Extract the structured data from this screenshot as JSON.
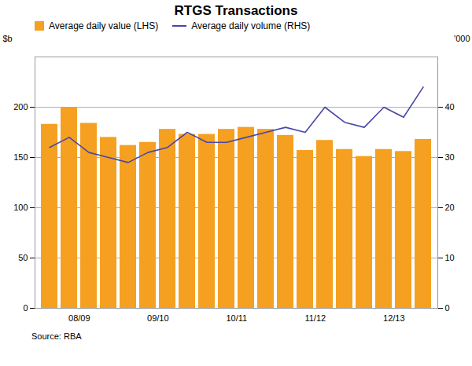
{
  "chart_data": {
    "type": "bar",
    "title": "RTGS Transactions",
    "ylabel": "$b",
    "y2label": "'000",
    "source": "Source: RBA",
    "categories": [
      null,
      "08/09",
      null,
      null,
      null,
      "09/10",
      null,
      null,
      null,
      "10/11",
      null,
      null,
      null,
      "11/12",
      null,
      null,
      null,
      "12/13",
      null,
      null
    ],
    "series": [
      {
        "name": "Average daily value (LHS)",
        "type": "bar",
        "color": "#F5A020",
        "values": [
          183,
          200,
          184,
          170,
          162,
          165,
          178,
          173,
          173,
          178,
          180,
          178,
          172,
          157,
          167,
          158,
          151,
          158,
          156,
          168
        ]
      },
      {
        "name": "Average daily volume (RHS)",
        "type": "line",
        "color": "#4848A8",
        "axis": "y2",
        "values": [
          32,
          34,
          31,
          30,
          29,
          31,
          32,
          35,
          33,
          33,
          34,
          35,
          36,
          35,
          40,
          37,
          36,
          40,
          38,
          44
        ]
      }
    ],
    "ylim": [
      0,
      250
    ],
    "yticks": [
      0,
      50,
      100,
      150,
      200
    ],
    "y2lim": [
      0,
      50
    ],
    "y2ticks": [
      0,
      10,
      20,
      30,
      40
    ],
    "grid": true,
    "legend": "upper left"
  }
}
